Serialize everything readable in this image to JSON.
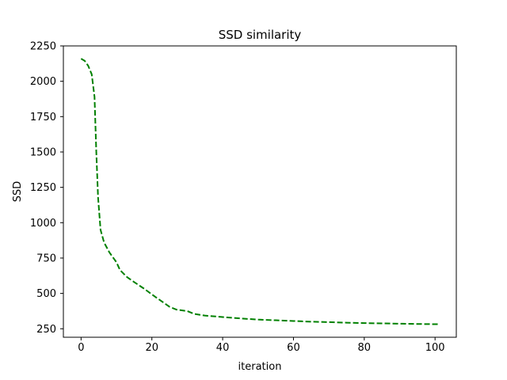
{
  "chart_data": {
    "type": "line",
    "title": "SSD similarity",
    "xlabel": "iteration",
    "ylabel": "SSD",
    "xlim": [
      -5,
      106
    ],
    "ylim": [
      190,
      2250
    ],
    "x_ticks": [
      0,
      20,
      40,
      60,
      80,
      100
    ],
    "y_ticks": [
      250,
      500,
      750,
      1000,
      1250,
      1500,
      1750,
      2000,
      2250
    ],
    "grid": false,
    "legend": "none",
    "series": [
      {
        "color": "#008000",
        "line_style": "dashed",
        "points": [
          [
            0,
            2160
          ],
          [
            1,
            2145
          ],
          [
            2,
            2110
          ],
          [
            3,
            2050
          ],
          [
            3.8,
            1890
          ],
          [
            4.3,
            1500
          ],
          [
            4.8,
            1180
          ],
          [
            5.5,
            950
          ],
          [
            6.5,
            860
          ],
          [
            8,
            790
          ],
          [
            10,
            720
          ],
          [
            11,
            665
          ],
          [
            13,
            615
          ],
          [
            15,
            580
          ],
          [
            18,
            530
          ],
          [
            21,
            475
          ],
          [
            23,
            440
          ],
          [
            25,
            405
          ],
          [
            27,
            385
          ],
          [
            30,
            375
          ],
          [
            32,
            355
          ],
          [
            35,
            343
          ],
          [
            40,
            333
          ],
          [
            45,
            323
          ],
          [
            50,
            315
          ],
          [
            55,
            310
          ],
          [
            60,
            305
          ],
          [
            65,
            300
          ],
          [
            70,
            297
          ],
          [
            75,
            293
          ],
          [
            80,
            290
          ],
          [
            85,
            288
          ],
          [
            90,
            286
          ],
          [
            95,
            284
          ],
          [
            101,
            282
          ]
        ]
      }
    ]
  }
}
